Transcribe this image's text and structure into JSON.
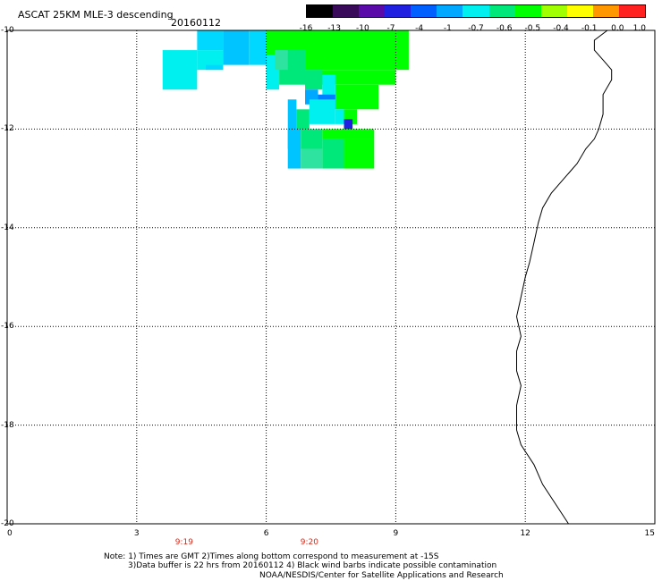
{
  "header": {
    "title": "ASCAT 25KM MLE-3 descending",
    "date": "20160112"
  },
  "colorbar": {
    "labels": [
      "-16",
      "-13",
      "-10",
      "-7",
      "-4",
      "-1",
      "-0.7",
      "-0.6",
      "-0.5",
      "-0.4",
      "-0.1",
      "0.0",
      "1.0"
    ],
    "colors": [
      "#000000",
      "#3a0a5a",
      "#5a0aa8",
      "#2020e0",
      "#0060ff",
      "#00a8ff",
      "#00f0f0",
      "#00e87a",
      "#00ff00",
      "#a0ff00",
      "#ffff00",
      "#ff9800",
      "#ff2020"
    ]
  },
  "map": {
    "lon_range": [
      0,
      15
    ],
    "lat_range": [
      -20,
      -10
    ],
    "x_ticks": [
      "0",
      "3",
      "6",
      "9",
      "12",
      "15"
    ],
    "y_ticks": [
      "-10",
      "-12",
      "-14",
      "-16",
      "-18",
      "-20"
    ],
    "grid": "dotted",
    "coastline": [
      [
        13.9,
        -10.0
      ],
      [
        13.6,
        -10.2
      ],
      [
        13.6,
        -10.4
      ],
      [
        13.8,
        -10.6
      ],
      [
        14.0,
        -10.8
      ],
      [
        14.0,
        -11.0
      ],
      [
        13.8,
        -11.3
      ],
      [
        13.8,
        -11.7
      ],
      [
        13.7,
        -12.0
      ],
      [
        13.6,
        -12.2
      ],
      [
        13.4,
        -12.4
      ],
      [
        13.2,
        -12.7
      ],
      [
        12.9,
        -13.0
      ],
      [
        12.6,
        -13.3
      ],
      [
        12.4,
        -13.6
      ],
      [
        12.3,
        -13.9
      ],
      [
        12.2,
        -14.3
      ],
      [
        12.1,
        -14.7
      ],
      [
        12.0,
        -15.0
      ],
      [
        11.9,
        -15.4
      ],
      [
        11.8,
        -15.8
      ],
      [
        11.9,
        -16.2
      ],
      [
        11.8,
        -16.5
      ],
      [
        11.8,
        -16.9
      ],
      [
        11.9,
        -17.2
      ],
      [
        11.8,
        -17.6
      ],
      [
        11.8,
        -18.1
      ],
      [
        11.9,
        -18.4
      ],
      [
        12.2,
        -18.8
      ],
      [
        12.4,
        -19.2
      ],
      [
        12.7,
        -19.6
      ],
      [
        13.0,
        -20.0
      ]
    ],
    "cells": [
      {
        "lon": [
          3.6,
          4.4
        ],
        "lat": [
          -10.4,
          -11.2
        ],
        "color": "#00f0f0"
      },
      {
        "lon": [
          4.4,
          5.0
        ],
        "lat": [
          -10.4,
          -10.8
        ],
        "color": "#00f0f0"
      },
      {
        "lon": [
          4.4,
          5.0
        ],
        "lat": [
          -10.0,
          -10.4
        ],
        "color": "#00d8ff"
      },
      {
        "lon": [
          5.0,
          5.6
        ],
        "lat": [
          -10.0,
          -10.7
        ],
        "color": "#00c4ff"
      },
      {
        "lon": [
          5.6,
          6.0
        ],
        "lat": [
          -10.0,
          -10.7
        ],
        "color": "#00d8ff"
      },
      {
        "lon": [
          4.6,
          5.0
        ],
        "lat": [
          -10.7,
          -10.8
        ],
        "color": "#00d8ff"
      },
      {
        "lon": [
          6.0,
          9.3
        ],
        "lat": [
          -10.0,
          -10.8
        ],
        "color": "#00ff00"
      },
      {
        "lon": [
          6.9,
          9.0
        ],
        "lat": [
          -10.8,
          -11.1
        ],
        "color": "#00ff00"
      },
      {
        "lon": [
          7.6,
          8.6
        ],
        "lat": [
          -11.1,
          -11.6
        ],
        "color": "#00ff00"
      },
      {
        "lon": [
          7.8,
          8.1
        ],
        "lat": [
          -11.6,
          -11.9
        ],
        "color": "#00ff00"
      },
      {
        "lon": [
          6.0,
          6.3
        ],
        "lat": [
          -10.5,
          -11.2
        ],
        "color": "#00f0f0"
      },
      {
        "lon": [
          6.3,
          6.9
        ],
        "lat": [
          -10.4,
          -11.1
        ],
        "color": "#00e87a"
      },
      {
        "lon": [
          6.2,
          6.5
        ],
        "lat": [
          -10.4,
          -10.8
        ],
        "color": "#2ee2a0"
      },
      {
        "lon": [
          6.9,
          7.3
        ],
        "lat": [
          -10.8,
          -11.2
        ],
        "color": "#00e87a"
      },
      {
        "lon": [
          7.3,
          7.6
        ],
        "lat": [
          -10.9,
          -11.4
        ],
        "color": "#00f0f0"
      },
      {
        "lon": [
          6.9,
          7.2
        ],
        "lat": [
          -11.2,
          -11.5
        ],
        "color": "#00a8ff"
      },
      {
        "lon": [
          7.2,
          7.6
        ],
        "lat": [
          -11.3,
          -11.6
        ],
        "color": "#0080ff"
      },
      {
        "lon": [
          7.0,
          7.6
        ],
        "lat": [
          -11.4,
          -11.9
        ],
        "color": "#00f0f0"
      },
      {
        "lon": [
          7.6,
          7.8
        ],
        "lat": [
          -11.6,
          -11.9
        ],
        "color": "#00f0f0"
      },
      {
        "lon": [
          7.8,
          8.0
        ],
        "lat": [
          -11.8,
          -12.0
        ],
        "color": "#2020e0"
      },
      {
        "lon": [
          6.5,
          6.7
        ],
        "lat": [
          -11.4,
          -12.4
        ],
        "color": "#00c4ff"
      },
      {
        "lon": [
          6.7,
          7.0
        ],
        "lat": [
          -11.6,
          -12.0
        ],
        "color": "#00e87a"
      },
      {
        "lon": [
          6.5,
          6.8
        ],
        "lat": [
          -12.0,
          -12.8
        ],
        "color": "#00c4ff"
      },
      {
        "lon": [
          6.8,
          7.3
        ],
        "lat": [
          -12.0,
          -12.4
        ],
        "color": "#00e87a"
      },
      {
        "lon": [
          6.8,
          7.3
        ],
        "lat": [
          -12.4,
          -12.8
        ],
        "color": "#2ee2a0"
      },
      {
        "lon": [
          7.3,
          7.8
        ],
        "lat": [
          -12.2,
          -12.8
        ],
        "color": "#00e87a"
      },
      {
        "lon": [
          7.3,
          8.5
        ],
        "lat": [
          -12.0,
          -12.2
        ],
        "color": "#00ff00"
      },
      {
        "lon": [
          7.8,
          8.5
        ],
        "lat": [
          -12.2,
          -12.8
        ],
        "color": "#00ff00"
      }
    ]
  },
  "time_labels": [
    {
      "text": "9:19",
      "lon": 4.1
    },
    {
      "text": "9:20",
      "lon": 7.0
    }
  ],
  "notes": {
    "line1": "Note: 1) Times are GMT 2)Times along bottom correspond to measurement at -15S",
    "line2": "3)Data buffer is 22 hrs from 20160112 4) Black wind barbs indicate possible contamination",
    "credit": "NOAA/NESDIS/Center for Satellite Applications and Research"
  }
}
